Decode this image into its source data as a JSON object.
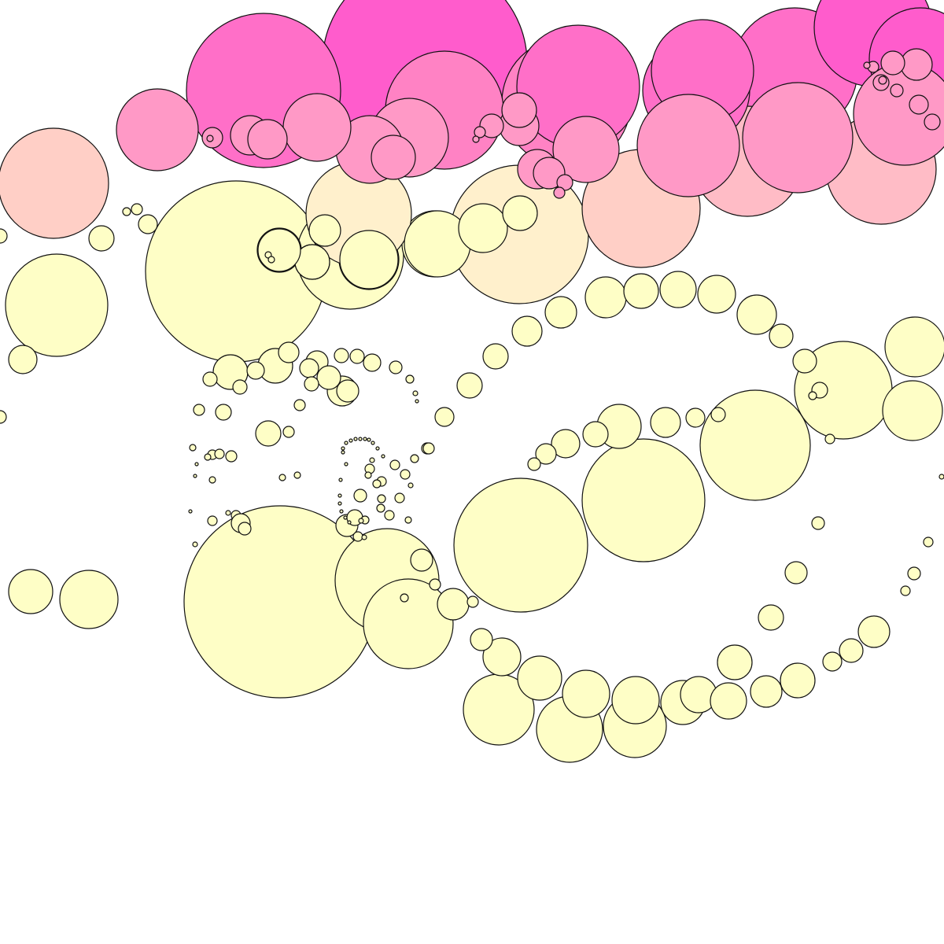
{
  "palette": {
    "background": "#ffffff",
    "outline": "#111111",
    "magenta": "#ff5ccc",
    "hot_pink": "#ff6fc8",
    "pink": "#ff82c4",
    "light_pink": "#ff99c6",
    "blush": "#ffbcc6",
    "peach": "#ffcfc6",
    "cream": "#fff0cc",
    "pale_yellow": "#fefec6"
  },
  "bands": [
    "magenta",
    "hot_pink",
    "pink",
    "light_pink",
    "blush",
    "peach",
    "cream",
    "pale_yellow"
  ]
}
